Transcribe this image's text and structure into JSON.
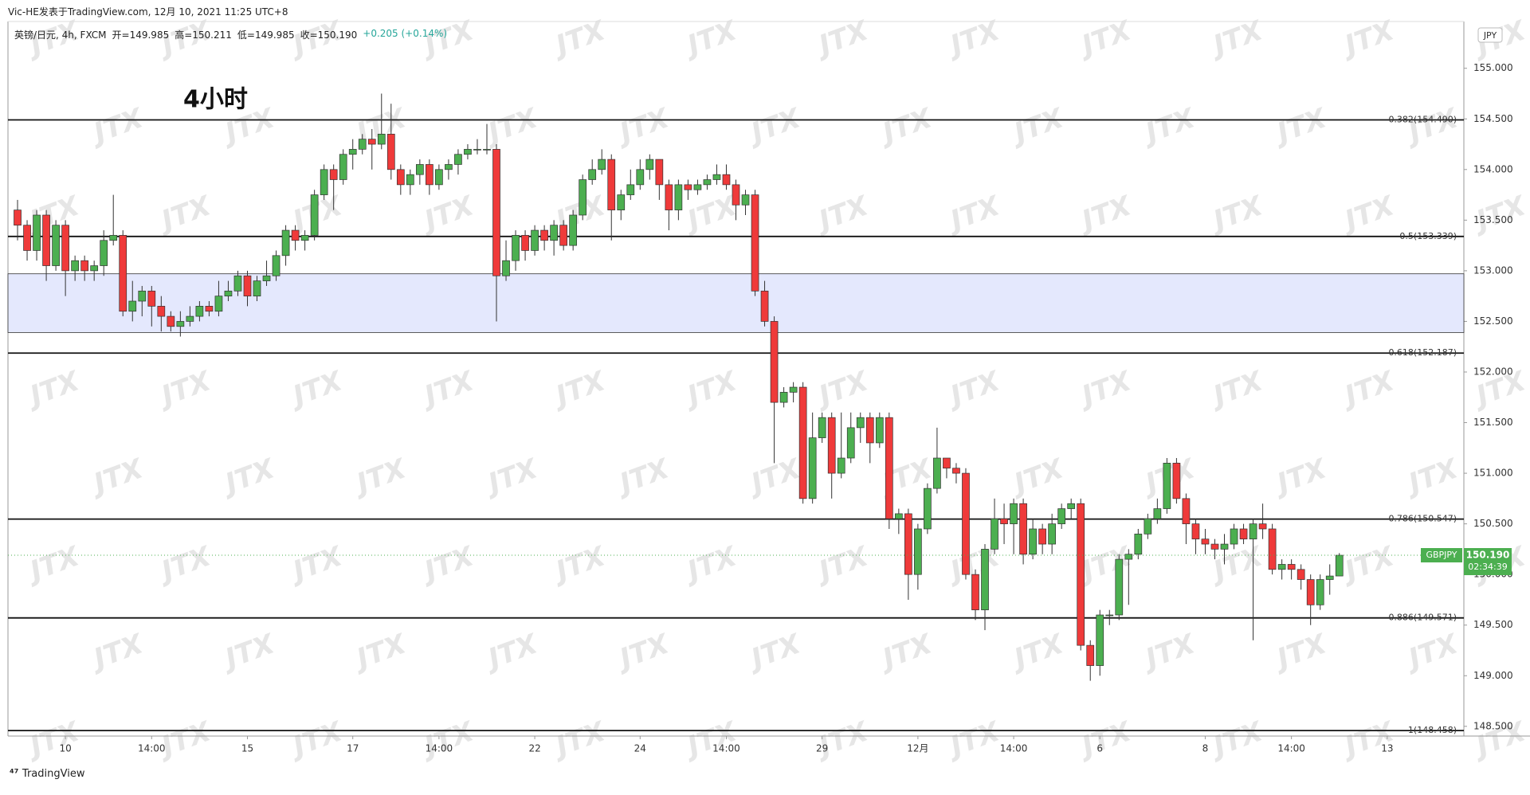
{
  "header": {
    "author": "Vic-HE发表于TradingView.com, 12月 10, 2021 11:25 UTC+8",
    "symbol": "英镑/日元, 4h, FXCM",
    "ohlc": [
      "开=149.985",
      "高=150.211",
      "低=149.985",
      "收=150.190",
      "+0.205 (+0.14%)"
    ]
  },
  "watermark": "JTX",
  "footer": "TradingView",
  "chart_data": {
    "type": "candlestick",
    "annotation": "4小时",
    "currency": "JPY",
    "up_color": "#4caf50",
    "down_color": "#ef3a3a",
    "ylim": [
      148.404,
      155.462
    ],
    "yticks": [
      {
        "value": 148.5,
        "label": "148.500"
      },
      {
        "value": 149,
        "label": "149.000"
      },
      {
        "value": 149.5,
        "label": "149.500"
      },
      {
        "value": 150,
        "label": "150.000"
      },
      {
        "value": 150.5,
        "label": "150.500"
      },
      {
        "value": 151,
        "label": "151.000"
      },
      {
        "value": 151.5,
        "label": "151.500"
      },
      {
        "value": 152,
        "label": "152.000"
      },
      {
        "value": 152.5,
        "label": "152.500"
      },
      {
        "value": 153,
        "label": "153.000"
      },
      {
        "value": 153.5,
        "label": "153.500"
      },
      {
        "value": 154,
        "label": "154.000"
      },
      {
        "value": 154.5,
        "label": "154.500"
      },
      {
        "value": 155,
        "label": "155.000"
      }
    ],
    "xlim": [
      -1,
      151
    ],
    "xticks": [
      {
        "value": 5,
        "label": "10"
      },
      {
        "value": 14,
        "label": "14:00"
      },
      {
        "value": 24,
        "label": "15"
      },
      {
        "value": 35,
        "label": "17"
      },
      {
        "value": 44,
        "label": "14:00"
      },
      {
        "value": 54,
        "label": "22"
      },
      {
        "value": 65,
        "label": "24"
      },
      {
        "value": 74,
        "label": "14:00"
      },
      {
        "value": 84,
        "label": "29"
      },
      {
        "value": 94,
        "label": "12月"
      },
      {
        "value": 104,
        "label": "14:00"
      },
      {
        "value": 113,
        "label": "6"
      },
      {
        "value": 124,
        "label": "8"
      },
      {
        "value": 133,
        "label": "14:00"
      },
      {
        "value": 143,
        "label": "13"
      }
    ],
    "levels": [
      {
        "value": 154.49,
        "label": "0.382(154.490)"
      },
      {
        "value": 153.339,
        "label": "0.5(153.339)"
      },
      {
        "value": 152.187,
        "label": "0.618(152.187)"
      },
      {
        "value": 150.547,
        "label": "0.786(150.547)"
      },
      {
        "value": 149.571,
        "label": "0.886(149.571)"
      },
      {
        "value": 148.458,
        "label": "1(148.458)"
      }
    ],
    "zone": [
      152.39,
      152.97
    ],
    "last_price": {
      "symbol": "GBPJPY",
      "value": 150.19,
      "label": "150.190",
      "countdown": "02:34:39"
    },
    "open": [
      153.6,
      153.45,
      153.2,
      153.55,
      153.05,
      153.45,
      153.0,
      153.1,
      153.0,
      153.05,
      153.3,
      153.35,
      152.6,
      152.7,
      152.8,
      152.65,
      152.55,
      152.45,
      152.5,
      152.55,
      152.65,
      152.6,
      152.75,
      152.8,
      152.95,
      152.75,
      152.9,
      152.95,
      153.15,
      153.4,
      153.3,
      153.35,
      153.75,
      154.0,
      153.9,
      154.15,
      154.2,
      154.3,
      154.25,
      154.35,
      154.0,
      153.85,
      153.95,
      154.05,
      153.85,
      154.0,
      154.05,
      154.15,
      154.2,
      154.2,
      154.2,
      152.95,
      153.1,
      153.35,
      153.2,
      153.4,
      153.3,
      153.45,
      153.25,
      153.55,
      153.9,
      154.0,
      154.1,
      153.6,
      153.75,
      153.85,
      154.0,
      154.1,
      153.85,
      153.6,
      153.85,
      153.8,
      153.85,
      153.9,
      153.95,
      153.85,
      153.65,
      153.75,
      152.8,
      152.5,
      151.7,
      151.8,
      151.85,
      150.75,
      151.35,
      151.55,
      151.0,
      151.15,
      151.45,
      151.55,
      151.3,
      151.55,
      150.55,
      150.6,
      150.0,
      150.45,
      150.85,
      151.15,
      151.05,
      151.0,
      150.0,
      149.65,
      150.25,
      150.55,
      150.5,
      150.7,
      150.2,
      150.45,
      150.3,
      150.5,
      150.65,
      150.7,
      149.3,
      149.1,
      149.6,
      149.6,
      150.15,
      150.2,
      150.4,
      150.55,
      150.65,
      151.1,
      150.75,
      150.5,
      150.35,
      150.3,
      150.25,
      150.3,
      150.45,
      150.35,
      150.5,
      150.45,
      150.05,
      150.1,
      150.05,
      149.95,
      149.7,
      149.95,
      149.985
    ],
    "high": [
      153.7,
      153.5,
      153.6,
      153.6,
      153.5,
      153.5,
      153.15,
      153.15,
      153.1,
      153.4,
      153.75,
      153.4,
      152.9,
      152.85,
      152.85,
      152.75,
      152.6,
      152.6,
      152.65,
      152.7,
      152.7,
      152.9,
      152.9,
      153.0,
      153.0,
      152.95,
      153.1,
      153.2,
      153.45,
      153.45,
      153.4,
      153.8,
      154.05,
      154.05,
      154.2,
      154.3,
      154.35,
      154.4,
      154.75,
      154.65,
      154.05,
      154.0,
      154.1,
      154.1,
      154.05,
      154.1,
      154.2,
      154.25,
      154.3,
      154.45,
      154.25,
      153.3,
      153.4,
      153.4,
      153.45,
      153.45,
      153.5,
      153.5,
      153.6,
      153.95,
      154.1,
      154.2,
      154.15,
      153.8,
      154.0,
      154.1,
      154.15,
      154.1,
      153.9,
      153.9,
      153.9,
      153.9,
      153.95,
      154.05,
      154.05,
      153.9,
      153.8,
      153.8,
      152.9,
      152.55,
      151.85,
      151.9,
      151.9,
      151.6,
      151.6,
      151.6,
      151.6,
      151.6,
      151.6,
      151.6,
      151.6,
      151.6,
      150.65,
      150.65,
      150.5,
      150.9,
      151.45,
      151.15,
      151.1,
      151.05,
      150.05,
      150.3,
      150.75,
      150.7,
      150.75,
      150.75,
      150.55,
      150.5,
      150.6,
      150.7,
      150.75,
      150.75,
      149.35,
      149.65,
      149.65,
      150.2,
      150.25,
      150.45,
      150.6,
      150.75,
      151.15,
      151.15,
      150.8,
      150.55,
      150.45,
      150.35,
      150.4,
      150.5,
      150.5,
      150.55,
      150.7,
      150.5,
      150.15,
      150.15,
      150.1,
      150.0,
      150.0,
      150.1,
      150.211
    ],
    "low": [
      153.3,
      153.1,
      153.1,
      152.9,
      153.0,
      152.75,
      152.9,
      152.9,
      152.9,
      152.95,
      153.25,
      152.55,
      152.5,
      152.55,
      152.45,
      152.4,
      152.4,
      152.35,
      152.45,
      152.5,
      152.55,
      152.55,
      152.7,
      152.75,
      152.65,
      152.7,
      152.85,
      152.9,
      153.05,
      153.2,
      153.2,
      153.3,
      153.7,
      153.6,
      153.85,
      154.0,
      154.15,
      154.0,
      154.2,
      153.9,
      153.75,
      153.75,
      153.85,
      153.75,
      153.8,
      153.9,
      153.95,
      154.1,
      154.15,
      154.15,
      152.5,
      152.9,
      153.0,
      153.1,
      153.15,
      153.2,
      153.15,
      153.2,
      153.2,
      153.5,
      153.85,
      153.95,
      153.3,
      153.5,
      153.7,
      153.8,
      153.9,
      153.7,
      153.4,
      153.5,
      153.7,
      153.75,
      153.8,
      153.85,
      153.8,
      153.5,
      153.55,
      152.75,
      152.45,
      151.1,
      151.65,
      151.7,
      150.7,
      150.7,
      151.3,
      150.75,
      150.95,
      151.1,
      151.3,
      151.1,
      151.25,
      150.45,
      150.4,
      149.75,
      149.85,
      150.4,
      150.8,
      150.95,
      150.9,
      149.95,
      149.55,
      149.45,
      150.2,
      150.3,
      150.2,
      150.1,
      150.15,
      150.2,
      150.2,
      150.45,
      150.55,
      149.25,
      148.95,
      149.0,
      149.5,
      149.55,
      149.7,
      150.15,
      150.35,
      150.5,
      150.6,
      150.7,
      150.3,
      150.2,
      150.2,
      150.15,
      150.1,
      150.25,
      150.3,
      149.35,
      150.35,
      150.0,
      149.95,
      149.95,
      149.85,
      149.5,
      149.65,
      149.8,
      149.985
    ],
    "close": [
      153.45,
      153.2,
      153.55,
      153.05,
      153.45,
      153.0,
      153.1,
      153.0,
      153.05,
      153.3,
      153.35,
      152.6,
      152.7,
      152.8,
      152.65,
      152.55,
      152.45,
      152.5,
      152.55,
      152.65,
      152.6,
      152.75,
      152.8,
      152.95,
      152.75,
      152.9,
      152.95,
      153.15,
      153.4,
      153.3,
      153.35,
      153.75,
      154.0,
      153.9,
      154.15,
      154.2,
      154.3,
      154.25,
      154.35,
      154.0,
      153.85,
      153.95,
      154.05,
      153.85,
      154.0,
      154.05,
      154.15,
      154.2,
      154.2,
      154.2,
      152.95,
      153.1,
      153.35,
      153.2,
      153.4,
      153.3,
      153.45,
      153.25,
      153.55,
      153.9,
      154.0,
      154.1,
      153.6,
      153.75,
      153.85,
      154.0,
      154.1,
      153.85,
      153.6,
      153.85,
      153.8,
      153.85,
      153.9,
      153.95,
      153.85,
      153.65,
      153.75,
      152.8,
      152.5,
      151.7,
      151.8,
      151.85,
      150.75,
      151.35,
      151.55,
      151.0,
      151.15,
      151.45,
      151.55,
      151.3,
      151.55,
      150.55,
      150.6,
      150.0,
      150.45,
      150.85,
      151.15,
      151.05,
      151.0,
      150.0,
      149.65,
      150.25,
      150.55,
      150.5,
      150.7,
      150.2,
      150.45,
      150.3,
      150.5,
      150.65,
      150.7,
      149.3,
      149.1,
      149.6,
      149.6,
      150.15,
      150.2,
      150.4,
      150.55,
      150.65,
      151.1,
      150.75,
      150.5,
      150.35,
      150.3,
      150.25,
      150.3,
      150.45,
      150.35,
      150.5,
      150.45,
      150.05,
      150.1,
      150.05,
      149.95,
      149.7,
      149.95,
      149.985,
      150.19
    ]
  }
}
